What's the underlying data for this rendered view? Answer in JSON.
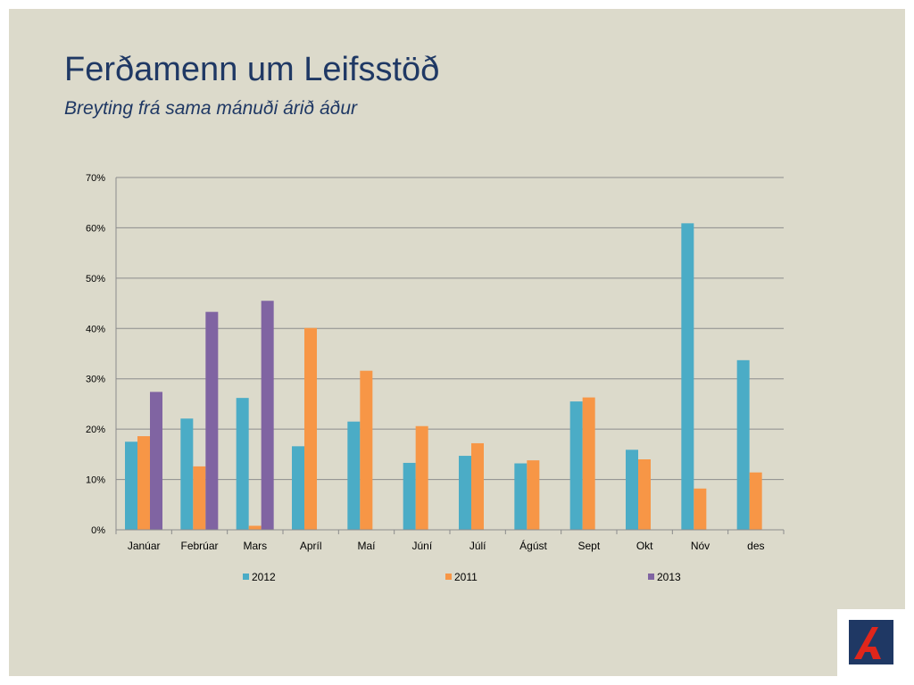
{
  "slide": {
    "title": "Ferðamenn um Leifsstöð",
    "subtitle": "Breyting frá sama mánuði árið áður"
  },
  "logo": {
    "icon": "bank-logo-icon",
    "background": "#1f3864",
    "accent": "#e0261b"
  },
  "chart_data": {
    "type": "bar",
    "title": "",
    "xlabel": "",
    "ylabel": "",
    "categories": [
      "Janúar",
      "Febrúar",
      "Mars",
      "Apríl",
      "Maí",
      "Júní",
      "Júlí",
      "Ágúst",
      "Sept",
      "Okt",
      "Nóv",
      "des"
    ],
    "ylim": [
      0,
      70
    ],
    "yticks": [
      0,
      10,
      20,
      30,
      40,
      50,
      60,
      70
    ],
    "ytick_labels": [
      "0%",
      "10%",
      "20%",
      "30%",
      "40%",
      "50%",
      "60%",
      "70%"
    ],
    "grid": true,
    "legend_position": "bottom",
    "series": [
      {
        "name": "2012",
        "color": "#4bacc6",
        "values": [
          17.5,
          22.1,
          26.2,
          16.6,
          21.5,
          13.3,
          14.7,
          13.2,
          25.5,
          15.9,
          60.9,
          33.7
        ]
      },
      {
        "name": "2011",
        "color": "#f79646",
        "values": [
          18.6,
          12.6,
          0.8,
          40.1,
          31.6,
          20.6,
          17.2,
          13.8,
          26.3,
          14.0,
          8.2,
          11.4
        ]
      },
      {
        "name": "2013",
        "color": "#8064a2",
        "values": [
          27.4,
          43.3,
          45.5,
          null,
          null,
          null,
          null,
          null,
          null,
          null,
          null,
          null
        ]
      }
    ]
  }
}
